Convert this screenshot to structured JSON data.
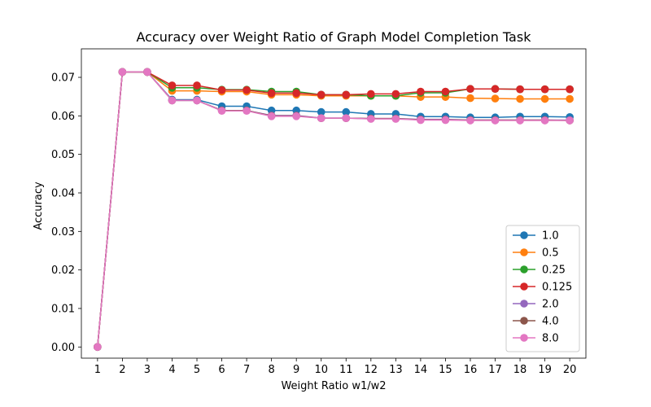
{
  "chart_data": {
    "type": "line",
    "title": "Accuracy over Weight Ratio of Graph Model Completion Task",
    "xlabel": "Weight Ratio w1/w2",
    "ylabel": "Accuracy",
    "x": [
      1,
      2,
      3,
      4,
      5,
      6,
      7,
      8,
      9,
      10,
      11,
      12,
      13,
      14,
      15,
      16,
      17,
      18,
      19,
      20
    ],
    "x_ticks": [
      "1",
      "2",
      "3",
      "4",
      "5",
      "6",
      "7",
      "8",
      "9",
      "10",
      "11",
      "12",
      "13",
      "14",
      "15",
      "16",
      "17",
      "18",
      "19",
      "20"
    ],
    "xlim": [
      0.35,
      20.65
    ],
    "ylim": [
      -0.0029,
      0.0774
    ],
    "y_ticks": [
      "0.00",
      "0.01",
      "0.02",
      "0.03",
      "0.04",
      "0.05",
      "0.06",
      "0.07"
    ],
    "y_tick_values": [
      0,
      0.01,
      0.02,
      0.03,
      0.04,
      0.05,
      0.06,
      0.07
    ],
    "grid": false,
    "legend_position": "lower-right",
    "series": [
      {
        "name": "1.0",
        "color": "#1f77b4",
        "values": [
          0.0,
          0.0714,
          0.0714,
          0.0642,
          0.0642,
          0.0625,
          0.0625,
          0.0614,
          0.0614,
          0.061,
          0.061,
          0.0605,
          0.0605,
          0.0598,
          0.0598,
          0.0596,
          0.0596,
          0.0598,
          0.0598,
          0.0597
        ]
      },
      {
        "name": "0.5",
        "color": "#ff7f0e",
        "values": [
          0.0,
          0.0714,
          0.0714,
          0.0665,
          0.0665,
          0.0663,
          0.0663,
          0.0655,
          0.0655,
          0.0652,
          0.0652,
          0.0652,
          0.0652,
          0.0649,
          0.0649,
          0.0646,
          0.0645,
          0.0644,
          0.0644,
          0.0644
        ]
      },
      {
        "name": "0.25",
        "color": "#2ca02c",
        "values": [
          0.0,
          0.0714,
          0.0714,
          0.0673,
          0.0673,
          0.0668,
          0.0668,
          0.0663,
          0.0663,
          0.0655,
          0.0655,
          0.0652,
          0.0652,
          0.066,
          0.066,
          0.067,
          0.067,
          0.0669,
          0.0669,
          0.0669
        ]
      },
      {
        "name": "0.125",
        "color": "#d62728",
        "values": [
          0.0,
          0.0714,
          0.0714,
          0.0679,
          0.0679,
          0.0667,
          0.0667,
          0.0659,
          0.0659,
          0.0655,
          0.0655,
          0.0657,
          0.0657,
          0.0663,
          0.0663,
          0.067,
          0.067,
          0.0669,
          0.0669,
          0.0669
        ]
      },
      {
        "name": "2.0",
        "color": "#9467bd",
        "values": [
          0.0,
          0.0714,
          0.0714,
          0.064,
          0.064,
          0.0614,
          0.0614,
          0.0601,
          0.0601,
          0.0594,
          0.0594,
          0.0593,
          0.0593,
          0.0591,
          0.0591,
          0.0589,
          0.0589,
          0.0589,
          0.0589,
          0.0589
        ]
      },
      {
        "name": "4.0",
        "color": "#8c564b",
        "values": [
          0.0,
          0.0714,
          0.0714,
          0.064,
          0.064,
          0.0614,
          0.0614,
          0.06,
          0.06,
          0.0594,
          0.0594,
          0.0593,
          0.0593,
          0.059,
          0.059,
          0.0589,
          0.0589,
          0.0589,
          0.0589,
          0.0588
        ]
      },
      {
        "name": "8.0",
        "color": "#e377c2",
        "values": [
          0.0,
          0.0714,
          0.0714,
          0.064,
          0.064,
          0.0613,
          0.0613,
          0.0599,
          0.0599,
          0.0594,
          0.0594,
          0.0592,
          0.0592,
          0.0589,
          0.0589,
          0.0588,
          0.0588,
          0.0588,
          0.0588,
          0.0588
        ]
      }
    ]
  }
}
